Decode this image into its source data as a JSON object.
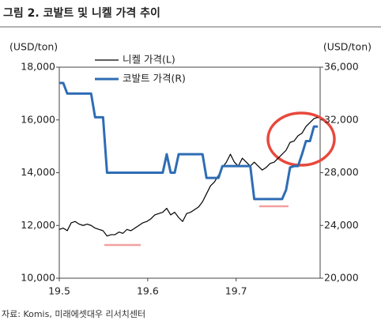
{
  "chart_data": {
    "type": "line",
    "title": "그림 2. 코발트 및 니켈 가격 추이",
    "y_label": "(USD/ton)",
    "y2_label": "(USD/ton)",
    "source": "자료: Komis, 미래에셋대우 리서치센터",
    "x": [
      19.5,
      19.5045,
      19.509,
      19.5135,
      19.518,
      19.5225,
      19.527,
      19.5315,
      19.536,
      19.5405,
      19.545,
      19.5495,
      19.554,
      19.5585,
      19.563,
      19.5675,
      19.572,
      19.5765,
      19.581,
      19.5855,
      19.59,
      19.5945,
      19.599,
      19.6035,
      19.608,
      19.6125,
      19.617,
      19.6215,
      19.626,
      19.6305,
      19.635,
      19.6395,
      19.644,
      19.6485,
      19.653,
      19.6575,
      19.662,
      19.6665,
      19.671,
      19.6755,
      19.68,
      19.6845,
      19.689,
      19.6935,
      19.698,
      19.7025,
      19.707,
      19.7115,
      19.716,
      19.7205,
      19.725,
      19.7295,
      19.734,
      19.7385,
      19.743,
      19.7475,
      19.752,
      19.7565,
      19.761,
      19.7655,
      19.77,
      19.7745,
      19.779,
      19.7835,
      19.788,
      19.7925
    ],
    "xlim": [
      19.5,
      19.795
    ],
    "xticks": [
      19.5,
      19.6,
      19.7
    ],
    "ylim": [
      10000,
      18000
    ],
    "yticks": [
      {
        "value": 10000,
        "label": "10,000"
      },
      {
        "value": 12000,
        "label": "12,000"
      },
      {
        "value": 14000,
        "label": "14,000"
      },
      {
        "value": 16000,
        "label": "16,000"
      },
      {
        "value": 18000,
        "label": "18,000"
      }
    ],
    "y2lim": [
      20000,
      36000
    ],
    "y2ticks": [
      {
        "value": 20000,
        "label": "20,000"
      },
      {
        "value": 24000,
        "label": "24,000"
      },
      {
        "value": 28000,
        "label": "28,000"
      },
      {
        "value": 32000,
        "label": "32,000"
      },
      {
        "value": 36000,
        "label": "36,000"
      }
    ],
    "grid": false,
    "series": [
      {
        "name": "니켈 가격(L)",
        "color": "#000000",
        "axis": "y",
        "values": [
          11850,
          11900,
          11800,
          12100,
          12150,
          12050,
          12000,
          12050,
          12000,
          11900,
          11850,
          11800,
          11600,
          11650,
          11650,
          11750,
          11700,
          11850,
          11800,
          11900,
          12000,
          12100,
          12150,
          12250,
          12400,
          12450,
          12500,
          12650,
          12400,
          12500,
          12300,
          12150,
          12450,
          12500,
          12600,
          12700,
          12900,
          13200,
          13500,
          13650,
          13900,
          14200,
          14400,
          14700,
          14400,
          14250,
          14550,
          14400,
          14250,
          14400,
          14250,
          14100,
          14200,
          14350,
          14400,
          14550,
          14700,
          14850,
          15150,
          15200,
          15400,
          15500,
          15750,
          15900,
          16050,
          16100
        ]
      },
      {
        "name": "코발트 가격(R)",
        "color": "#2e6db4",
        "axis": "y2",
        "values": [
          34800,
          34800,
          34000,
          34000,
          34000,
          34000,
          34000,
          34000,
          34000,
          32200,
          32200,
          32200,
          28000,
          28000,
          28000,
          28000,
          28000,
          28000,
          28000,
          28000,
          28000,
          28000,
          28000,
          28000,
          28000,
          28000,
          28000,
          29400,
          28000,
          28000,
          29400,
          29400,
          29400,
          29400,
          29400,
          29400,
          29400,
          27600,
          27600,
          27600,
          27600,
          28500,
          28500,
          28500,
          28500,
          28500,
          28500,
          28500,
          28500,
          26000,
          26000,
          26000,
          26000,
          26000,
          26000,
          26000,
          26000,
          26700,
          28400,
          28500,
          28500,
          29400,
          30400,
          30400,
          31500,
          31500
        ]
      }
    ]
  }
}
